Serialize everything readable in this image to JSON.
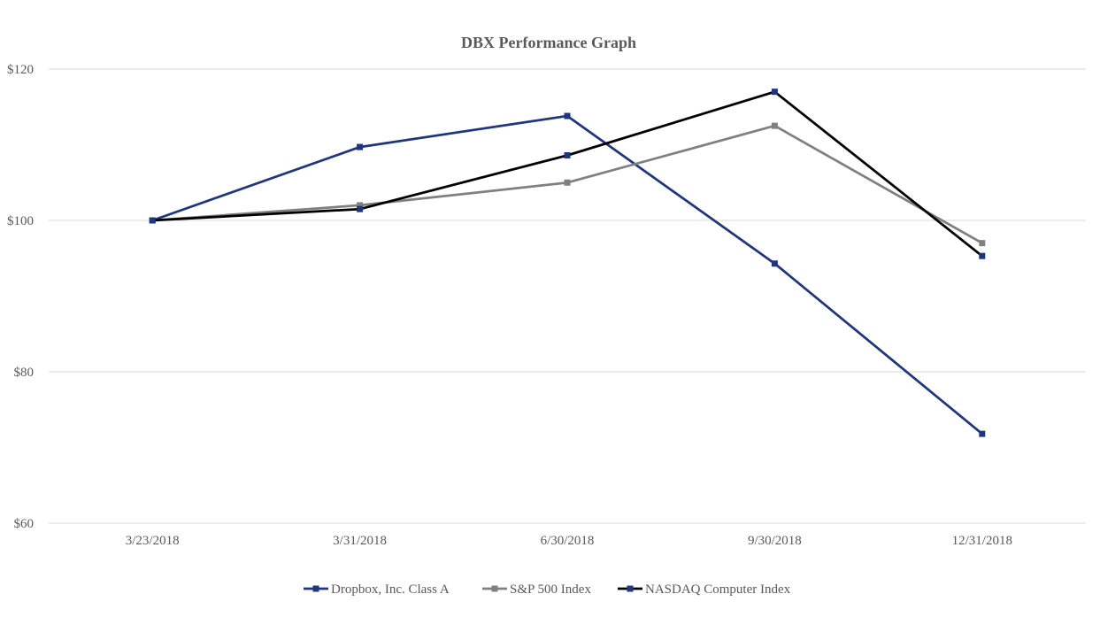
{
  "chart_data": {
    "type": "line",
    "title": "DBX Performance Graph",
    "xlabel": "",
    "ylabel": "",
    "categories": [
      "3/23/2018",
      "3/31/2018",
      "6/30/2018",
      "9/30/2018",
      "12/31/2018"
    ],
    "ylim": [
      60,
      120
    ],
    "yticks": [
      60,
      80,
      100,
      120
    ],
    "ytick_labels": [
      "$60",
      "$80",
      "$100",
      "$120"
    ],
    "grid": true,
    "legend_position": "bottom",
    "series": [
      {
        "name": "Dropbox, Inc. Class A",
        "color": "#1f3580",
        "values": [
          100,
          109.7,
          113.8,
          94.3,
          71.8
        ]
      },
      {
        "name": "S&P 500 Index",
        "color": "#808080",
        "values": [
          100,
          102,
          105,
          112.5,
          97
        ]
      },
      {
        "name": "NASDAQ Computer Index",
        "color": "#000000",
        "marker_color": "#1f3580",
        "values": [
          100,
          101.5,
          108.6,
          117,
          95.3
        ]
      }
    ]
  }
}
